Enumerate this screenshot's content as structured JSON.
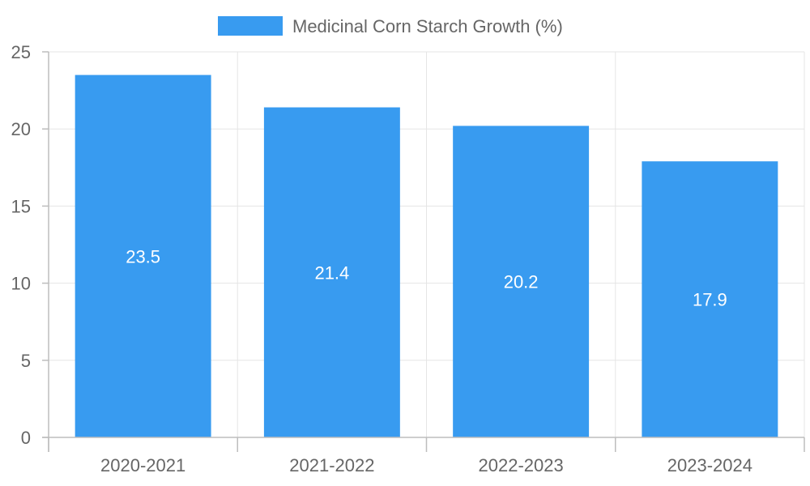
{
  "chart_data": {
    "type": "bar",
    "categories": [
      "2020-2021",
      "2021-2022",
      "2022-2023",
      "2023-2024"
    ],
    "series": [
      {
        "name": "Medicinal Corn Starch Growth (%)",
        "values": [
          23.5,
          21.4,
          20.2,
          17.9
        ],
        "color": "#389bf0"
      }
    ],
    "ylim": [
      0,
      25
    ],
    "yticks": [
      0,
      5,
      10,
      15,
      20,
      25
    ],
    "grid": true,
    "legend_position": "top-center",
    "data_labels": true
  }
}
